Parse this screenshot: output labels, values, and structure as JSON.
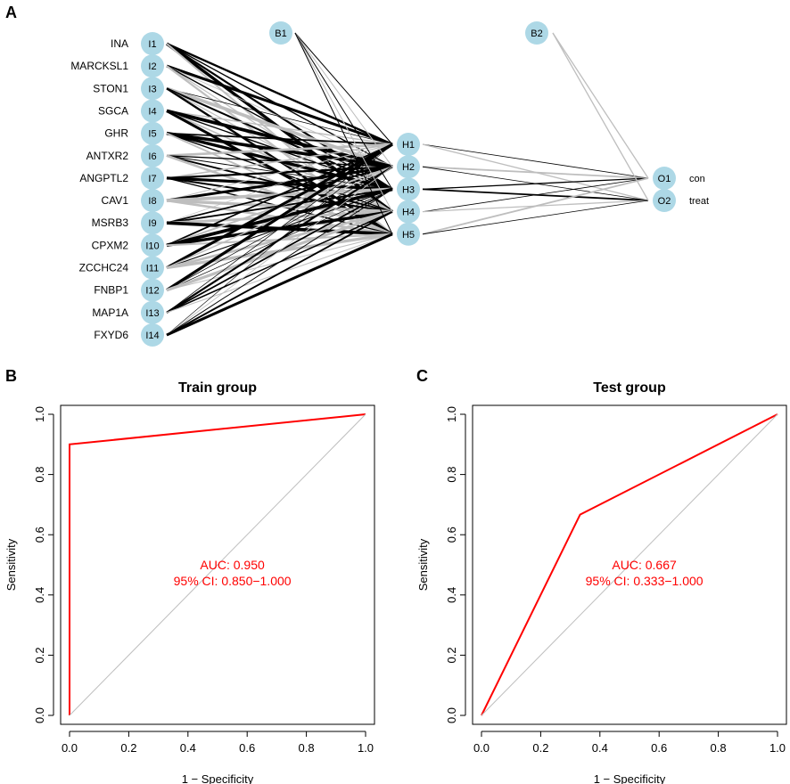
{
  "panels": {
    "a": "A",
    "b": "B",
    "c": "C"
  },
  "network": {
    "genes": [
      "INA",
      "MARCKSL1",
      "STON1",
      "SGCA",
      "GHR",
      "ANTXR2",
      "ANGPTL2",
      "CAV1",
      "MSRB3",
      "CPXM2",
      "ZCCHC24",
      "FNBP1",
      "MAP1A",
      "FXYD6"
    ],
    "inputs": [
      "I1",
      "I2",
      "I3",
      "I4",
      "I5",
      "I6",
      "I7",
      "I8",
      "I9",
      "I10",
      "I11",
      "I12",
      "I13",
      "I14"
    ],
    "hidden": [
      "H1",
      "H2",
      "H3",
      "H4",
      "H5"
    ],
    "bias": [
      "B1",
      "B2"
    ],
    "outputs": [
      "O1",
      "O2"
    ],
    "output_labels": [
      "con",
      "treat"
    ],
    "node_color": "#add8e6",
    "positive_weight_color": "#000000",
    "negative_weight_color": "#bebebe"
  },
  "chart_data": [
    {
      "type": "line",
      "title": "Train group",
      "xlabel": "1 − Specificity",
      "ylabel": "Sensitivity",
      "xlim": [
        0,
        1
      ],
      "ylim": [
        0,
        1
      ],
      "xticks": [
        "0.0",
        "0.2",
        "0.4",
        "0.6",
        "0.8",
        "1.0"
      ],
      "yticks": [
        "0.0",
        "0.2",
        "0.4",
        "0.6",
        "0.8",
        "1.0"
      ],
      "series": [
        {
          "name": "ROC",
          "color": "#ff0000",
          "x": [
            0,
            0,
            1
          ],
          "y": [
            0,
            0.9,
            1
          ]
        },
        {
          "name": "reference",
          "color": "#bebebe",
          "x": [
            0,
            1
          ],
          "y": [
            0,
            1
          ]
        }
      ],
      "annotations": [
        "AUC: 0.950",
        "95% CI: 0.850−1.000"
      ]
    },
    {
      "type": "line",
      "title": "Test group",
      "xlabel": "1 − Specificity",
      "ylabel": "Sensitivity",
      "xlim": [
        0,
        1
      ],
      "ylim": [
        0,
        1
      ],
      "xticks": [
        "0.0",
        "0.2",
        "0.4",
        "0.6",
        "0.8",
        "1.0"
      ],
      "yticks": [
        "0.0",
        "0.2",
        "0.4",
        "0.6",
        "0.8",
        "1.0"
      ],
      "series": [
        {
          "name": "ROC",
          "color": "#ff0000",
          "x": [
            0,
            0.333,
            1
          ],
          "y": [
            0,
            0.667,
            1
          ]
        },
        {
          "name": "reference",
          "color": "#bebebe",
          "x": [
            0,
            1
          ],
          "y": [
            0,
            1
          ]
        }
      ],
      "annotations": [
        "AUC: 0.667",
        "95% CI: 0.333−1.000"
      ]
    }
  ]
}
